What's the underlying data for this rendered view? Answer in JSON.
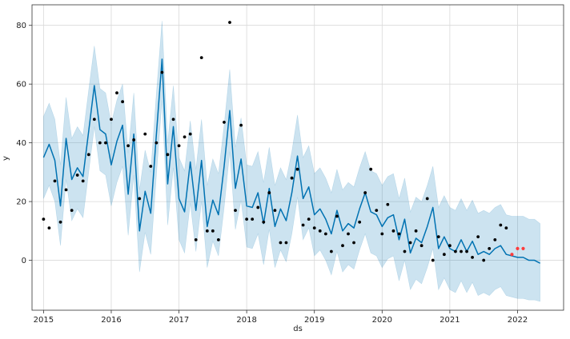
{
  "chart_data": {
    "type": "line",
    "title": "",
    "xlabel": "ds",
    "ylabel": "y",
    "xlim": [
      2014.83,
      2022.68
    ],
    "ylim": [
      -17,
      87
    ],
    "x_ticks": [
      2015,
      2016,
      2017,
      2018,
      2019,
      2020,
      2021,
      2022
    ],
    "x_tick_labels": [
      "2015",
      "2016",
      "2017",
      "2018",
      "2019",
      "2020",
      "2021",
      "2022"
    ],
    "y_ticks": [
      0,
      20,
      40,
      60,
      80
    ],
    "y_tick_labels": [
      "0",
      "20",
      "40",
      "60",
      "80"
    ],
    "grid": true,
    "colors": {
      "forecast_line": "#0072b2",
      "uncertainty_band": "#0072b2",
      "observed_points": "#000000",
      "highlighted_points": "#ff3b3b"
    },
    "series": [
      {
        "name": "yhat",
        "kind": "line",
        "x": [
          2015.0,
          2015.083,
          2015.167,
          2015.25,
          2015.333,
          2015.417,
          2015.5,
          2015.583,
          2015.667,
          2015.75,
          2015.833,
          2015.917,
          2016.0,
          2016.083,
          2016.167,
          2016.25,
          2016.333,
          2016.417,
          2016.5,
          2016.583,
          2016.667,
          2016.75,
          2016.833,
          2016.917,
          2017.0,
          2017.083,
          2017.167,
          2017.25,
          2017.333,
          2017.417,
          2017.5,
          2017.583,
          2017.667,
          2017.75,
          2017.833,
          2017.917,
          2018.0,
          2018.083,
          2018.167,
          2018.25,
          2018.333,
          2018.417,
          2018.5,
          2018.583,
          2018.667,
          2018.75,
          2018.833,
          2018.917,
          2019.0,
          2019.083,
          2019.167,
          2019.25,
          2019.333,
          2019.417,
          2019.5,
          2019.583,
          2019.667,
          2019.75,
          2019.833,
          2019.917,
          2020.0,
          2020.083,
          2020.167,
          2020.25,
          2020.333,
          2020.417,
          2020.5,
          2020.583,
          2020.667,
          2020.75,
          2020.833,
          2020.917,
          2021.0,
          2021.083,
          2021.167,
          2021.25,
          2021.333,
          2021.417,
          2021.5,
          2021.583,
          2021.667,
          2021.75,
          2021.833,
          2021.917,
          2022.0,
          2022.083,
          2022.167,
          2022.25,
          2022.333
        ],
        "y": [
          35,
          39.5,
          34,
          18.5,
          41.5,
          27.5,
          31.5,
          28.5,
          44,
          59.5,
          44.5,
          43,
          32.5,
          40.5,
          46,
          22.5,
          43,
          10,
          23.5,
          16,
          43,
          68.5,
          26,
          45.5,
          21,
          16.5,
          33.5,
          17,
          34,
          11.5,
          20.5,
          15.5,
          32,
          51,
          24.5,
          34.5,
          18.5,
          18,
          23,
          12.5,
          24.5,
          11.5,
          17.5,
          13.5,
          23,
          35.5,
          21,
          25,
          15.5,
          17.5,
          14,
          9,
          17,
          10,
          12.5,
          11,
          17.5,
          23,
          16.5,
          15.5,
          11.5,
          14.5,
          15.5,
          7,
          14,
          2.5,
          7.5,
          6,
          11.5,
          18,
          4,
          8,
          4,
          3,
          7,
          3,
          6.5,
          2,
          3,
          2,
          4,
          5,
          2,
          1.5,
          1,
          1,
          0,
          0,
          -1
        ]
      },
      {
        "name": "yhat_upper",
        "kind": "band_upper",
        "y": [
          49,
          53.5,
          48,
          32.5,
          55.5,
          41.5,
          45.5,
          42.5,
          58,
          73,
          58.5,
          57,
          46.5,
          54.5,
          60,
          36.5,
          57,
          24,
          37.5,
          30,
          57,
          81.5,
          40,
          59.5,
          35,
          30.5,
          47.5,
          31,
          48,
          25.5,
          34.5,
          29.5,
          46,
          65,
          38.5,
          48.5,
          32.5,
          32,
          37,
          26.5,
          38.5,
          25.5,
          31.5,
          27.5,
          37,
          49.5,
          35,
          39,
          29.5,
          31.5,
          28,
          23,
          31,
          24,
          26.5,
          25,
          31.5,
          37,
          30.5,
          29.5,
          25.5,
          28.5,
          29.5,
          21,
          28,
          16.5,
          21.5,
          20,
          25.5,
          32,
          18,
          22,
          18,
          17,
          21,
          17,
          20.5,
          16,
          17,
          16,
          18,
          19,
          15.5,
          15,
          15,
          15,
          14,
          14,
          12.5
        ]
      },
      {
        "name": "yhat_lower",
        "kind": "band_lower",
        "y": [
          21,
          25.5,
          20,
          5,
          27.5,
          13.5,
          17.5,
          14.5,
          30,
          45.5,
          30.5,
          29,
          18.5,
          26.5,
          32,
          8.5,
          29,
          -4,
          9.5,
          2,
          29,
          54.5,
          12,
          31.5,
          7,
          2.5,
          19.5,
          3,
          20,
          -2.5,
          6.5,
          1.5,
          18,
          37,
          10.5,
          20.5,
          4.5,
          4,
          9,
          -1.5,
          10.5,
          -2.5,
          3.5,
          -0.5,
          9,
          21.5,
          7,
          11,
          1.5,
          3.5,
          0,
          -5,
          3,
          -4,
          -1.5,
          -3,
          3.5,
          9,
          2.5,
          1.5,
          -2.5,
          0.5,
          1.5,
          -7,
          0,
          -10,
          -6.5,
          -8,
          -2.5,
          4,
          -10,
          -6,
          -10,
          -11,
          -7,
          -11,
          -7.5,
          -12,
          -11,
          -12,
          -10,
          -9,
          -12,
          -12.5,
          -13,
          -13,
          -13.5,
          -13.5,
          -14
        ]
      },
      {
        "name": "observed",
        "kind": "scatter",
        "x": [
          2015.0,
          2015.083,
          2015.167,
          2015.25,
          2015.333,
          2015.417,
          2015.5,
          2015.583,
          2015.667,
          2015.75,
          2015.833,
          2015.917,
          2016.0,
          2016.083,
          2016.167,
          2016.25,
          2016.333,
          2016.417,
          2016.5,
          2016.583,
          2016.667,
          2016.75,
          2016.833,
          2016.917,
          2017.0,
          2017.083,
          2017.167,
          2017.25,
          2017.333,
          2017.417,
          2017.5,
          2017.583,
          2017.667,
          2017.75,
          2017.833,
          2017.917,
          2018.0,
          2018.083,
          2018.167,
          2018.25,
          2018.333,
          2018.417,
          2018.5,
          2018.583,
          2018.667,
          2018.75,
          2018.833,
          2018.917,
          2019.0,
          2019.083,
          2019.167,
          2019.25,
          2019.333,
          2019.417,
          2019.5,
          2019.583,
          2019.667,
          2019.75,
          2019.833,
          2019.917,
          2020.0,
          2020.083,
          2020.167,
          2020.25,
          2020.333,
          2020.417,
          2020.5,
          2020.583,
          2020.667,
          2020.75,
          2020.833,
          2020.917,
          2021.0,
          2021.083,
          2021.167,
          2021.25,
          2021.333,
          2021.417,
          2021.5,
          2021.583,
          2021.667,
          2021.75,
          2021.833
        ],
        "y": [
          14,
          11,
          27,
          13,
          24,
          17,
          29,
          27,
          36,
          48,
          40,
          40,
          48,
          57,
          54,
          39,
          41,
          21,
          43,
          32,
          40,
          64,
          36,
          48,
          39,
          42,
          43,
          7,
          69,
          10,
          10,
          7,
          47,
          81,
          17,
          46,
          14,
          14,
          18,
          13,
          23,
          17,
          6,
          6,
          28,
          31,
          12,
          14,
          11,
          10,
          9,
          3,
          15,
          5,
          9,
          6,
          13,
          23,
          31,
          17,
          9,
          19,
          10,
          9,
          3,
          6,
          10,
          5,
          21,
          0,
          8,
          2,
          5,
          3,
          3,
          3,
          1,
          8,
          0,
          4,
          7,
          12,
          11
        ]
      },
      {
        "name": "highlighted",
        "kind": "scatter",
        "x": [
          2021.917,
          2022.0,
          2022.083
        ],
        "y": [
          2,
          4,
          4
        ]
      }
    ]
  }
}
